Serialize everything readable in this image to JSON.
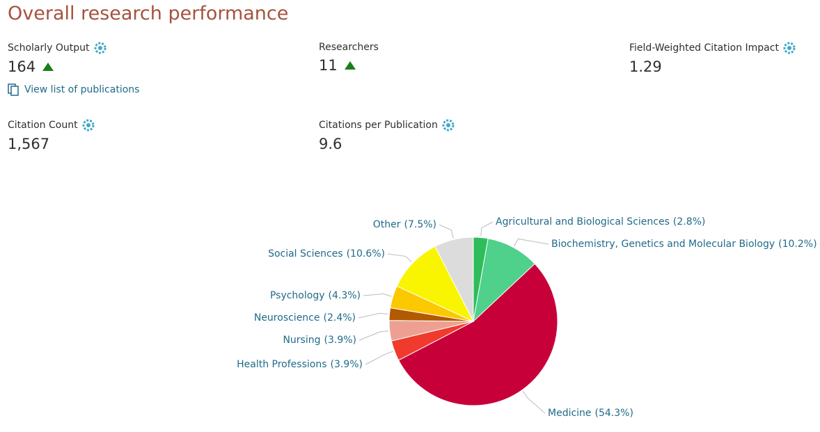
{
  "header": {
    "title": "Overall research performance"
  },
  "metrics": [
    {
      "label": "Scholarly Output",
      "value": "164"
    },
    {
      "label": "Researchers",
      "value": "11"
    },
    {
      "label": "Field-Weighted Citation Impact",
      "value": "1.29"
    },
    {
      "label": "Citation Count",
      "value": "1,567"
    },
    {
      "label": "Citations per Publication",
      "value": "9.6"
    }
  ],
  "link": {
    "label": "View list of publications"
  },
  "chart_data": {
    "type": "pie",
    "categories": [
      "Agricultural and Biological Sciences",
      "Biochemistry, Genetics and Molecular Biology",
      "Medicine",
      "Health Professions",
      "Nursing",
      "Neuroscience",
      "Psychology",
      "Social Sciences",
      "Other"
    ],
    "values": [
      2.8,
      10.2,
      54.3,
      3.9,
      3.9,
      2.4,
      4.3,
      10.6,
      7.5
    ],
    "value_labels": [
      "(2.8%)",
      "(10.2%)",
      "(54.3%)",
      "(3.9%)",
      "(3.9%)",
      "(2.4%)",
      "(4.3%)",
      "(10.6%)",
      "(7.5%)"
    ],
    "colors": [
      "#2dbd5a",
      "#4fd08b",
      "#c8003a",
      "#f03a2e",
      "#eda091",
      "#b35a00",
      "#fcc800",
      "#f9f500",
      "#dcdcdc"
    ]
  }
}
